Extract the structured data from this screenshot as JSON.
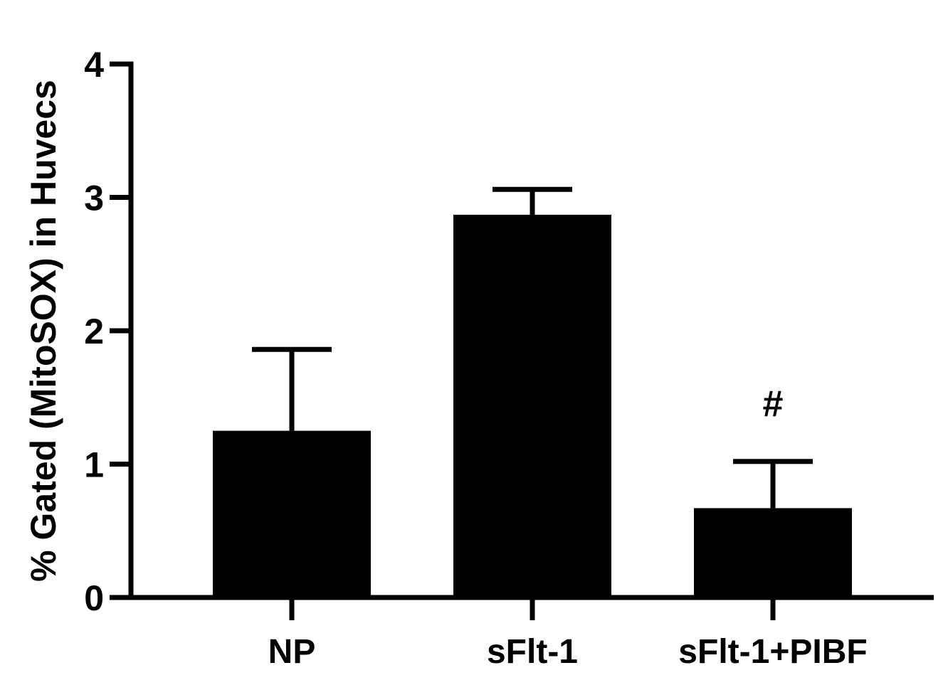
{
  "chart_data": {
    "type": "bar",
    "title": "",
    "xlabel": "",
    "ylabel": "% Gated (MitoSOX) in Huvecs",
    "categories": [
      "NP",
      "sFlt-1",
      "sFlt-1+PIBF"
    ],
    "values": [
      1.25,
      2.87,
      0.67
    ],
    "errors": [
      0.61,
      0.19,
      0.35
    ],
    "ylim": [
      0,
      4
    ],
    "yticks": [
      "0",
      "1",
      "2",
      "3",
      "4"
    ],
    "annotations": [
      "",
      "",
      "#"
    ],
    "grid": false,
    "legend": "none",
    "colors": {
      "bar": "#000000",
      "axis": "#000000",
      "background": "#ffffff"
    }
  }
}
